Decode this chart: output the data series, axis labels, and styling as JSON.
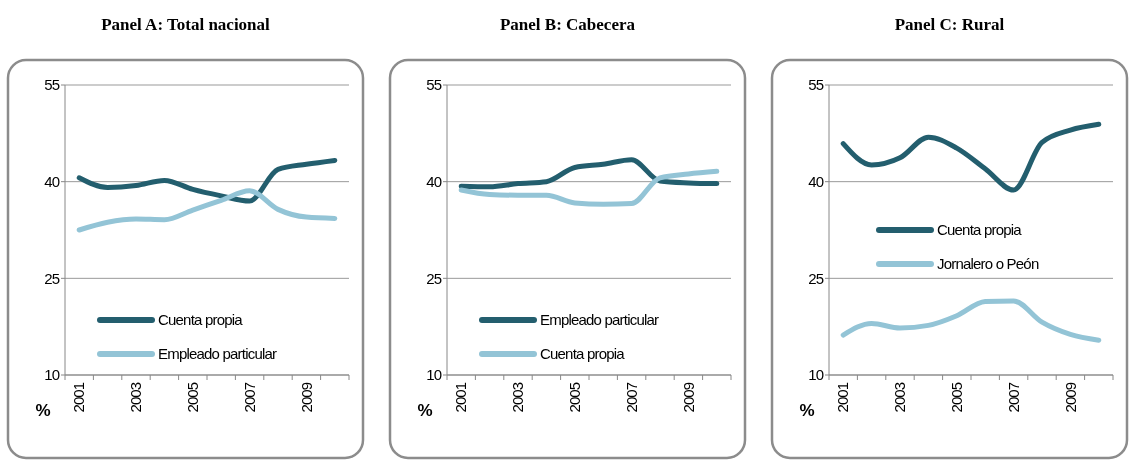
{
  "chart_data": [
    {
      "type": "line",
      "title": "Panel A: Total nacional",
      "ylabel": "%",
      "categories": [
        "2001",
        null,
        "2003",
        null,
        "2005",
        null,
        "2007",
        null,
        "2009",
        null
      ],
      "ylim": [
        10,
        55
      ],
      "yticks": [
        10,
        25,
        40,
        55
      ],
      "grid": "y",
      "legend": "bottom",
      "series": [
        {
          "name": "Cuenta propia",
          "color": "#235e6e",
          "values": [
            40.6,
            39.1,
            39.4,
            40.2,
            38.8,
            37.8,
            37.0,
            41.9,
            42.7,
            43.3
          ]
        },
        {
          "name": "Empleado particular",
          "color": "#93c4d6",
          "values": [
            32.5,
            33.7,
            34.2,
            34.1,
            35.6,
            37.1,
            38.6,
            35.7,
            34.5,
            34.3
          ]
        }
      ]
    },
    {
      "type": "line",
      "title": "Panel B: Cabecera",
      "ylabel": "%",
      "categories": [
        "2001",
        null,
        "2003",
        null,
        "2005",
        null,
        "2007",
        null,
        "2009",
        null
      ],
      "ylim": [
        10,
        55
      ],
      "yticks": [
        10,
        25,
        40,
        55
      ],
      "grid": "y",
      "legend": "bottom",
      "series": [
        {
          "name": "Empleado particular",
          "color": "#235e6e",
          "values": [
            39.3,
            39.2,
            39.7,
            40.0,
            42.2,
            42.7,
            43.4,
            40.1,
            39.8,
            39.7
          ]
        },
        {
          "name": "Cuenta propia",
          "color": "#93c4d6",
          "values": [
            38.7,
            38.0,
            37.9,
            37.9,
            36.7,
            36.5,
            36.6,
            40.6,
            41.2,
            41.6
          ]
        }
      ]
    },
    {
      "type": "line",
      "title": "Panel C: Rural",
      "ylabel": "%",
      "categories": [
        "2001",
        null,
        "2003",
        null,
        "2005",
        null,
        "2007",
        null,
        "2009",
        null
      ],
      "ylim": [
        10,
        55
      ],
      "yticks": [
        10,
        25,
        40,
        55
      ],
      "grid": "y",
      "legend": "center",
      "series": [
        {
          "name": "Cuenta propia",
          "color": "#235e6e",
          "values": [
            45.9,
            42.6,
            43.7,
            46.9,
            45.2,
            42.0,
            38.7,
            46.1,
            48.0,
            48.9
          ]
        },
        {
          "name": "Jornalero o Peón",
          "color": "#93c4d6",
          "values": [
            16.2,
            18.0,
            17.3,
            17.7,
            19.2,
            21.4,
            21.5,
            18.2,
            16.3,
            15.4
          ]
        }
      ]
    }
  ]
}
